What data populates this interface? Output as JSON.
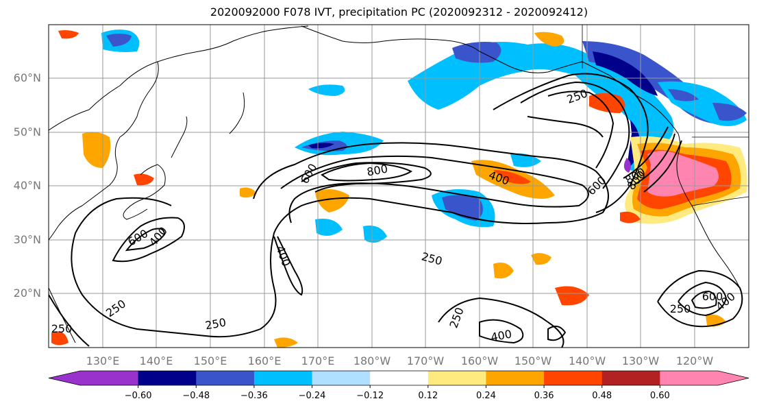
{
  "title": "2020092000 F078 IVT, precipitation PC (2020092312 - 2020092412)",
  "lat_labels": [
    "60°N",
    "50°N",
    "40°N",
    "30°N",
    "20°N"
  ],
  "lon_labels": [
    "130°E",
    "140°E",
    "150°E",
    "160°E",
    "170°E",
    "180°W",
    "170°W",
    "160°W",
    "150°W",
    "140°W",
    "130°W",
    "120°W"
  ],
  "colorbar": {
    "ticks": [
      "−0.60",
      "−0.48",
      "−0.36",
      "−0.24",
      "−0.12",
      "0.12",
      "0.24",
      "0.36",
      "0.48",
      "0.60"
    ],
    "colors": [
      "#9932cc",
      "#00008b",
      "#3a55cc",
      "#00bfff",
      "#b0e0ff",
      "#ffffff",
      "#ffea80",
      "#ffa500",
      "#ff4500",
      "#b22222",
      "#ff85b0"
    ]
  },
  "contour_labels": [
    "250",
    "800",
    "600",
    "800",
    "400",
    "600",
    "800",
    "250",
    "600",
    "400",
    "400",
    "250",
    "250",
    "250",
    "400",
    "250",
    "600",
    "400",
    "250"
  ]
}
